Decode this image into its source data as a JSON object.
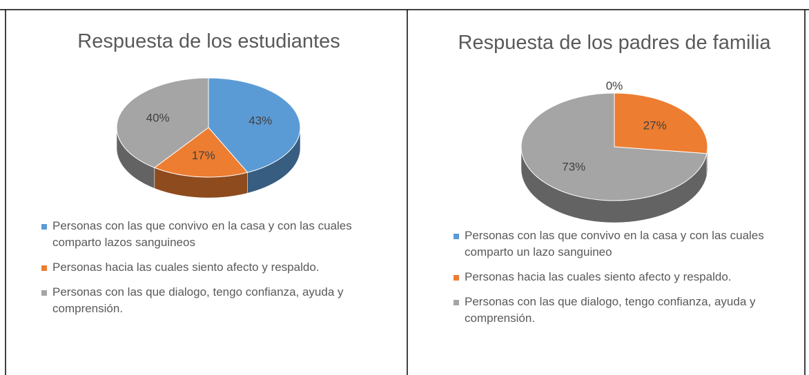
{
  "chart_data": [
    {
      "type": "pie",
      "title": "Respuesta de los estudiantes",
      "categories": [
        "Personas con las que convivo en la casa y con las cuales comparto lazos sanguineos",
        "Personas hacia las cuales siento afecto y respaldo.",
        "Personas con las que dialogo, tengo confianza, ayuda y comprensión."
      ],
      "values": [
        43,
        17,
        40
      ],
      "value_labels": [
        "43%",
        "17%",
        "40%"
      ],
      "colors": [
        "#5b9bd5",
        "#ed7d31",
        "#a5a5a5"
      ],
      "legend": "bottom"
    },
    {
      "type": "pie",
      "title": "Respuesta de los padres de familia",
      "categories": [
        "Personas con las que convivo en la casa y con las cuales comparto un lazo sanguineo",
        "Personas hacia las cuales siento afecto y respaldo.",
        "Personas con las que dialogo, tengo confianza, ayuda y comprensión."
      ],
      "values": [
        0,
        27,
        73
      ],
      "value_labels": [
        "0%",
        "27%",
        "73%"
      ],
      "colors": [
        "#5b9bd5",
        "#ed7d31",
        "#a5a5a5"
      ],
      "legend": "bottom"
    }
  ]
}
